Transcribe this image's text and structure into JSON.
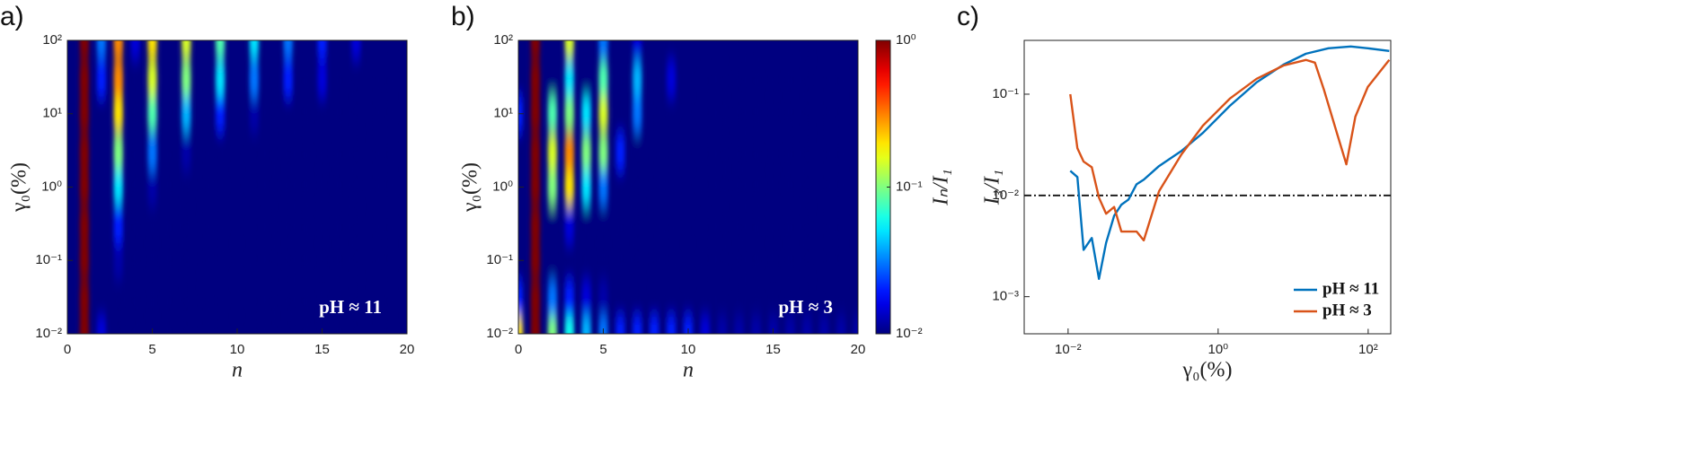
{
  "chart_data": [
    {
      "type": "heatmap",
      "panel_label": "a)",
      "annotation": "pH ≈ 11",
      "xlabel": "n",
      "ylabel": "γ₀(%)",
      "xlim": [
        0,
        20
      ],
      "xticks": [
        0,
        5,
        10,
        15,
        20
      ],
      "ylim": [
        0.01,
        100
      ],
      "ylog": true,
      "yticks": [
        {
          "value": 0.01,
          "label": "10⁻²"
        },
        {
          "value": 0.1,
          "label": "10⁻¹"
        },
        {
          "value": 1,
          "label": "10⁰"
        },
        {
          "value": 10,
          "label": "10¹"
        },
        {
          "value": 100,
          "label": "10²"
        }
      ],
      "colormap": "jet",
      "zlim": [
        0.01,
        1
      ],
      "zlog": true,
      "x": [
        0,
        1,
        2,
        3,
        4,
        5,
        6,
        7,
        8,
        9,
        10,
        11,
        12,
        13,
        14,
        15,
        16,
        17,
        18,
        19,
        20
      ],
      "y": [
        0.01,
        0.03,
        0.1,
        0.3,
        1,
        3,
        10,
        30,
        100
      ],
      "z": [
        [
          0.01,
          1,
          0.015,
          0.01,
          0.01,
          0.01,
          0.01,
          0.01,
          0.01,
          0.01,
          0.01,
          0.01,
          0.01,
          0.01,
          0.01,
          0.01,
          0.01,
          0.01,
          0.01,
          0.01,
          0.01
        ],
        [
          0.01,
          1,
          0.01,
          0.01,
          0.01,
          0.01,
          0.01,
          0.01,
          0.01,
          0.01,
          0.01,
          0.01,
          0.01,
          0.01,
          0.01,
          0.01,
          0.01,
          0.01,
          0.01,
          0.01,
          0.01
        ],
        [
          0.01,
          1,
          0.01,
          0.012,
          0.01,
          0.01,
          0.01,
          0.01,
          0.01,
          0.01,
          0.01,
          0.01,
          0.01,
          0.01,
          0.01,
          0.01,
          0.01,
          0.01,
          0.01,
          0.01,
          0.01
        ],
        [
          0.01,
          1,
          0.01,
          0.02,
          0.01,
          0.01,
          0.01,
          0.01,
          0.01,
          0.01,
          0.01,
          0.01,
          0.01,
          0.01,
          0.01,
          0.01,
          0.01,
          0.01,
          0.01,
          0.01,
          0.01
        ],
        [
          0.01,
          1,
          0.01,
          0.05,
          0.01,
          0.012,
          0.01,
          0.01,
          0.01,
          0.01,
          0.01,
          0.01,
          0.01,
          0.01,
          0.01,
          0.01,
          0.01,
          0.01,
          0.01,
          0.01,
          0.01
        ],
        [
          0.01,
          1,
          0.01,
          0.1,
          0.01,
          0.03,
          0.01,
          0.012,
          0.01,
          0.01,
          0.01,
          0.01,
          0.01,
          0.01,
          0.01,
          0.01,
          0.01,
          0.01,
          0.01,
          0.01,
          0.01
        ],
        [
          0.01,
          1,
          0.01,
          0.2,
          0.01,
          0.08,
          0.01,
          0.04,
          0.01,
          0.02,
          0.01,
          0.012,
          0.01,
          0.01,
          0.01,
          0.01,
          0.01,
          0.01,
          0.01,
          0.01,
          0.01
        ],
        [
          0.01,
          1,
          0.02,
          0.3,
          0.01,
          0.15,
          0.01,
          0.1,
          0.01,
          0.05,
          0.01,
          0.03,
          0.01,
          0.02,
          0.01,
          0.015,
          0.01,
          0.01,
          0.01,
          0.01,
          0.01
        ],
        [
          0.01,
          1,
          0.03,
          0.3,
          0.015,
          0.2,
          0.01,
          0.15,
          0.01,
          0.08,
          0.01,
          0.05,
          0.01,
          0.03,
          0.01,
          0.02,
          0.01,
          0.015,
          0.01,
          0.01,
          0.01
        ]
      ]
    },
    {
      "type": "heatmap",
      "panel_label": "b)",
      "annotation": "pH ≈ 3",
      "xlabel": "n",
      "ylabel": "γ₀(%)",
      "xlim": [
        0,
        20
      ],
      "xticks": [
        0,
        5,
        10,
        15,
        20
      ],
      "ylim": [
        0.01,
        100
      ],
      "ylog": true,
      "yticks": [
        {
          "value": 0.01,
          "label": "10⁻²"
        },
        {
          "value": 0.1,
          "label": "10⁻¹"
        },
        {
          "value": 1,
          "label": "10⁰"
        },
        {
          "value": 10,
          "label": "10¹"
        },
        {
          "value": 100,
          "label": "10²"
        }
      ],
      "colormap": "jet",
      "zlim": [
        0.01,
        1
      ],
      "zlog": true,
      "zlabel": "Iₙ/I₁",
      "zticks": [
        {
          "value": 0.01,
          "label": "10⁻²"
        },
        {
          "value": 0.1,
          "label": "10⁻¹"
        },
        {
          "value": 1,
          "label": "10⁰"
        }
      ],
      "x": [
        0,
        1,
        2,
        3,
        4,
        5,
        6,
        7,
        8,
        9,
        10,
        11,
        12,
        13,
        14,
        15,
        16,
        17,
        18,
        19,
        20
      ],
      "y": [
        0.01,
        0.03,
        0.1,
        0.3,
        1,
        3,
        10,
        30,
        100
      ],
      "z": [
        [
          0.2,
          1,
          0.1,
          0.06,
          0.04,
          0.03,
          0.02,
          0.02,
          0.02,
          0.02,
          0.02,
          0.015,
          0.012,
          0.012,
          0.012,
          0.012,
          0.012,
          0.012,
          0.012,
          0.012,
          0.012
        ],
        [
          0.02,
          1,
          0.03,
          0.02,
          0.015,
          0.012,
          0.01,
          0.01,
          0.01,
          0.01,
          0.01,
          0.01,
          0.01,
          0.01,
          0.01,
          0.01,
          0.01,
          0.01,
          0.01,
          0.01,
          0.01
        ],
        [
          0.01,
          1,
          0.01,
          0.01,
          0.01,
          0.01,
          0.01,
          0.01,
          0.01,
          0.01,
          0.01,
          0.01,
          0.01,
          0.01,
          0.01,
          0.01,
          0.01,
          0.01,
          0.01,
          0.01,
          0.01
        ],
        [
          0.01,
          1,
          0.01,
          0.015,
          0.01,
          0.01,
          0.01,
          0.01,
          0.01,
          0.01,
          0.01,
          0.01,
          0.01,
          0.01,
          0.01,
          0.01,
          0.01,
          0.01,
          0.01,
          0.01,
          0.01
        ],
        [
          0.01,
          1,
          0.1,
          0.2,
          0.05,
          0.03,
          0.01,
          0.01,
          0.01,
          0.01,
          0.01,
          0.01,
          0.01,
          0.01,
          0.01,
          0.01,
          0.01,
          0.01,
          0.01,
          0.01,
          0.01
        ],
        [
          0.01,
          1,
          0.15,
          0.3,
          0.1,
          0.1,
          0.02,
          0.01,
          0.01,
          0.01,
          0.01,
          0.01,
          0.01,
          0.01,
          0.01,
          0.01,
          0.01,
          0.01,
          0.01,
          0.01,
          0.01
        ],
        [
          0.02,
          1,
          0.08,
          0.1,
          0.05,
          0.15,
          0.01,
          0.03,
          0.01,
          0.01,
          0.01,
          0.01,
          0.01,
          0.01,
          0.01,
          0.01,
          0.01,
          0.01,
          0.01,
          0.01,
          0.01
        ],
        [
          0.01,
          1,
          0.01,
          0.05,
          0.01,
          0.08,
          0.01,
          0.04,
          0.01,
          0.015,
          0.01,
          0.01,
          0.01,
          0.01,
          0.01,
          0.01,
          0.01,
          0.01,
          0.01,
          0.01,
          0.01
        ],
        [
          0.01,
          1,
          0.01,
          0.15,
          0.01,
          0.03,
          0.01,
          0.015,
          0.01,
          0.01,
          0.01,
          0.01,
          0.01,
          0.01,
          0.01,
          0.01,
          0.01,
          0.01,
          0.01,
          0.01,
          0.01
        ]
      ]
    },
    {
      "type": "line",
      "panel_label": "c)",
      "xlabel": "γ₀(%)",
      "ylabel": "I₃/I₁",
      "xlog": true,
      "ylog": true,
      "xlim": [
        0.0026,
        200
      ],
      "ylim": [
        0.00043,
        0.34
      ],
      "xticks": [
        {
          "value": 0.01,
          "label": "10⁻²"
        },
        {
          "value": 1,
          "label": "10⁰"
        },
        {
          "value": 100,
          "label": "10²"
        }
      ],
      "yticks": [
        {
          "value": 0.001,
          "label": "10⁻³"
        },
        {
          "value": 0.01,
          "label": "10⁻²"
        },
        {
          "value": 0.1,
          "label": "10⁻¹"
        }
      ],
      "hline": 0.01,
      "legend": "lower right",
      "series": [
        {
          "name": "pH ≈ 11",
          "color": "#0072bd",
          "x": [
            0.0107,
            0.0133,
            0.0161,
            0.0207,
            0.0258,
            0.0321,
            0.0411,
            0.0513,
            0.0638,
            0.0818,
            0.102,
            0.163,
            0.324,
            0.627,
            1.43,
            3.26,
            7.45,
            14.8,
            29.5,
            58.7,
            98.9,
            191
          ],
          "values": [
            0.0175,
            0.0152,
            0.0029,
            0.0038,
            0.0015,
            0.0034,
            0.0063,
            0.0081,
            0.0091,
            0.0129,
            0.0143,
            0.0195,
            0.0275,
            0.0415,
            0.0766,
            0.131,
            0.196,
            0.251,
            0.284,
            0.296,
            0.284,
            0.267
          ]
        },
        {
          "name": "pH ≈ 3",
          "color": "#d95319",
          "x": [
            0.0107,
            0.0133,
            0.0161,
            0.0207,
            0.0258,
            0.0321,
            0.0411,
            0.0513,
            0.0818,
            0.102,
            0.163,
            0.324,
            0.627,
            1.43,
            3.26,
            7.45,
            14.8,
            19.5,
            25.7,
            38.9,
            51.2,
            67.5,
            98.9,
            191
          ],
          "values": [
            0.1,
            0.0293,
            0.0216,
            0.019,
            0.0095,
            0.0066,
            0.0077,
            0.0044,
            0.0044,
            0.0036,
            0.011,
            0.0254,
            0.0489,
            0.0903,
            0.142,
            0.192,
            0.218,
            0.205,
            0.111,
            0.0398,
            0.0203,
            0.06,
            0.118,
            0.218
          ]
        }
      ]
    }
  ]
}
